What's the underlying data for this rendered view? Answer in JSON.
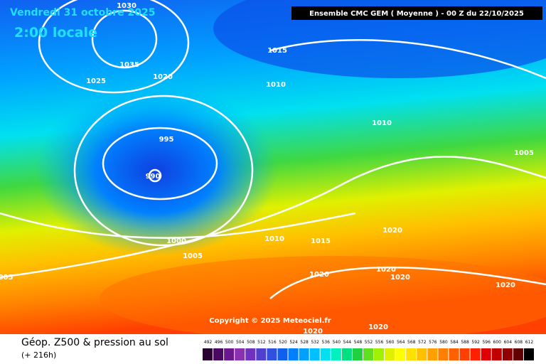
{
  "header": {
    "date": "Vendredi 31 octobre 2025",
    "local_time": "2:00 locale",
    "run": "Ensemble CMC GEM  ( Moyenne )  -  00 Z du 22/10/2025"
  },
  "isobars": [
    {
      "label": "1030"
    },
    {
      "label": "1035"
    },
    {
      "label": "1025"
    },
    {
      "label": "1020"
    },
    {
      "label": "1015"
    },
    {
      "label": "1010"
    },
    {
      "label": "995"
    },
    {
      "label": "990"
    },
    {
      "label": "1000"
    },
    {
      "label": "1005"
    },
    {
      "label": "1010"
    },
    {
      "label": "1015"
    },
    {
      "label": "1020"
    },
    {
      "label": "1020"
    },
    {
      "label": "1020"
    },
    {
      "label": "1020"
    },
    {
      "label": "1010"
    },
    {
      "label": "1005"
    },
    {
      "label": "1020"
    },
    {
      "label": "1020"
    },
    {
      "label": "1020"
    },
    {
      "label": "005"
    }
  ],
  "copyright": "Copyright © 2025 Meteociel.fr",
  "footer": {
    "title": "Géop. Z500 & pression au sol",
    "lead": "(+ 216h)"
  },
  "legend": {
    "values": [
      492,
      496,
      500,
      504,
      508,
      512,
      516,
      520,
      524,
      528,
      532,
      536,
      540,
      544,
      548,
      552,
      556,
      560,
      564,
      568,
      572,
      576,
      580,
      584,
      588,
      592,
      596,
      600,
      604,
      608,
      612
    ]
  }
}
